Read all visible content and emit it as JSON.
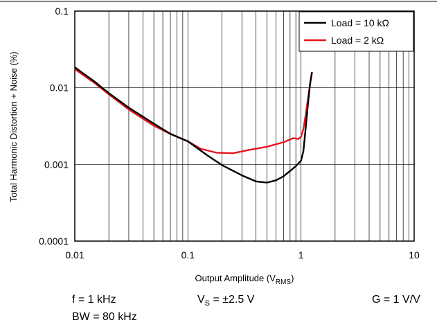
{
  "chart_data": {
    "type": "line",
    "ylabel": "Total Harmonic Distortion + Noise (%)",
    "xlabel_main": "Output Amplitude (V",
    "xlabel_sub": "RMS",
    "xlabel_tail": ")",
    "x_scale": "log",
    "y_scale": "log",
    "xlim": [
      0.01,
      10
    ],
    "ylim": [
      0.0001,
      0.1
    ],
    "x_ticks": [
      {
        "value": 0.01,
        "label": "0.01"
      },
      {
        "value": 0.1,
        "label": "0.1"
      },
      {
        "value": 1,
        "label": "1"
      },
      {
        "value": 10,
        "label": "10"
      }
    ],
    "y_ticks": [
      {
        "value": 0.0001,
        "label": "0.0001"
      },
      {
        "value": 0.001,
        "label": "0.001"
      },
      {
        "value": 0.01,
        "label": "0.01"
      },
      {
        "value": 0.1,
        "label": "0.1"
      }
    ],
    "grid": true,
    "legend_position": "top-right",
    "series": [
      {
        "name": "Load = 10 kΩ",
        "color": "#000000",
        "points": [
          [
            0.01,
            0.0185
          ],
          [
            0.015,
            0.012
          ],
          [
            0.02,
            0.0085
          ],
          [
            0.03,
            0.0055
          ],
          [
            0.05,
            0.0034
          ],
          [
            0.07,
            0.0025
          ],
          [
            0.1,
            0.002
          ],
          [
            0.15,
            0.0013
          ],
          [
            0.2,
            0.00098
          ],
          [
            0.3,
            0.00072
          ],
          [
            0.4,
            0.0006
          ],
          [
            0.5,
            0.00058
          ],
          [
            0.6,
            0.00062
          ],
          [
            0.7,
            0.0007
          ],
          [
            0.8,
            0.00082
          ],
          [
            0.9,
            0.00095
          ],
          [
            1.0,
            0.00112
          ],
          [
            1.05,
            0.0015
          ],
          [
            1.1,
            0.003
          ],
          [
            1.15,
            0.006
          ],
          [
            1.2,
            0.011
          ],
          [
            1.25,
            0.016
          ]
        ]
      },
      {
        "name": "Load = 2 kΩ",
        "color": "#e8141b",
        "points": [
          [
            0.01,
            0.0175
          ],
          [
            0.015,
            0.0115
          ],
          [
            0.02,
            0.0082
          ],
          [
            0.03,
            0.0052
          ],
          [
            0.05,
            0.0032
          ],
          [
            0.07,
            0.0025
          ],
          [
            0.1,
            0.002
          ],
          [
            0.13,
            0.0016
          ],
          [
            0.18,
            0.00142
          ],
          [
            0.25,
            0.0014
          ],
          [
            0.35,
            0.00155
          ],
          [
            0.5,
            0.0017
          ],
          [
            0.7,
            0.00195
          ],
          [
            0.85,
            0.0022
          ],
          [
            0.95,
            0.00215
          ],
          [
            1.0,
            0.0023
          ],
          [
            1.05,
            0.0029
          ],
          [
            1.1,
            0.0045
          ],
          [
            1.15,
            0.007
          ],
          [
            1.2,
            0.011
          ],
          [
            1.25,
            0.016
          ]
        ]
      }
    ]
  },
  "conditions": {
    "f": "f = 1 kHz",
    "vs_main": "V",
    "vs_sub": "S",
    "vs_tail": " = ±2.5 V",
    "g": "G = 1 V/V",
    "bw": "BW = 80 kHz"
  }
}
